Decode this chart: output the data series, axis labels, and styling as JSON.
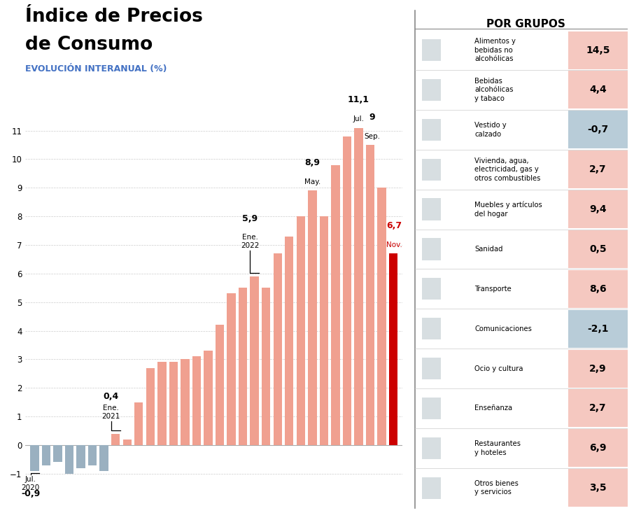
{
  "title_line1": "Índice de Precios",
  "title_line2": "de Consumo",
  "subtitle": "EVOLUCIÓN INTERANUAL (%)",
  "bar_values": [
    -0.9,
    -0.7,
    -0.6,
    -1.0,
    -0.8,
    -0.7,
    -0.9,
    0.4,
    0.2,
    1.5,
    2.7,
    2.9,
    2.9,
    3.0,
    3.1,
    3.3,
    4.2,
    5.3,
    5.5,
    5.9,
    5.5,
    6.7,
    7.3,
    8.0,
    8.9,
    8.0,
    9.8,
    10.8,
    11.1,
    10.5,
    9.0,
    6.7
  ],
  "bar_colors_normal": "#f0a090",
  "bar_colors_negative": "#9ab0c0",
  "bar_color_highlight": "#cc0000",
  "annotations": [
    {
      "label": "Jul.\n2020",
      "value": "-0,9",
      "bar_index": 0,
      "side": "below"
    },
    {
      "label": "Ene.\n2021",
      "value": "0,4",
      "bar_index": 7,
      "side": "above"
    },
    {
      "label": "Ene.\n2022",
      "value": "5,9",
      "bar_index": 19,
      "side": "above"
    },
    {
      "label": "May.",
      "value": "8,9",
      "bar_index": 24,
      "side": "above"
    },
    {
      "label": "Jul.",
      "value": "11,1",
      "bar_index": 28,
      "side": "above"
    },
    {
      "label": "Sep.",
      "value": "9",
      "bar_index": 29,
      "side": "above"
    },
    {
      "label": "Nov.",
      "value": "6,7",
      "bar_index": 31,
      "side": "above"
    }
  ],
  "ylim": [
    -1.3,
    11.8
  ],
  "yticks": [
    -1,
    0,
    1,
    2,
    3,
    4,
    5,
    6,
    7,
    8,
    9,
    10,
    11
  ],
  "right_panel_title": "POR GRUPOS",
  "right_panel_items": [
    {
      "label": "Alimentos y\nbebidas no\nalcohólicas",
      "value": "14,5",
      "num": 14.5,
      "bg": "#f5c8c0"
    },
    {
      "label": "Bebidas\nalcohólicas\ny tabaco",
      "value": "4,4",
      "num": 4.4,
      "bg": "#f5c8c0"
    },
    {
      "label": "Vestido y\ncalzado",
      "value": "-0,7",
      "num": -0.7,
      "bg": "#f5c8c0"
    },
    {
      "label": "Vivienda, agua,\nelectricidad, gas y\notros combustibles",
      "value": "2,7",
      "num": 2.7,
      "bg": "#f5c8c0"
    },
    {
      "label": "Muebles y artículos\ndel hogar",
      "value": "9,4",
      "num": 9.4,
      "bg": "#f5c8c0"
    },
    {
      "label": "Sanidad",
      "value": "0,5",
      "num": 0.5,
      "bg": "#f5c8c0"
    },
    {
      "label": "Transporte",
      "value": "8,6",
      "num": 8.6,
      "bg": "#f5c8c0"
    },
    {
      "label": "Comunicaciones",
      "value": "-2,1",
      "num": -2.1,
      "bg": "#b8ccd8"
    },
    {
      "label": "Ocio y cultura",
      "value": "2,9",
      "num": 2.9,
      "bg": "#f5c8c0"
    },
    {
      "label": "Enseñanza",
      "value": "2,7",
      "num": 2.7,
      "bg": "#f5c8c0"
    },
    {
      "label": "Restaurantes\ny hoteles",
      "value": "6,9",
      "num": 6.9,
      "bg": "#f5c8c0"
    },
    {
      "label": "Otros bienes\ny servicios",
      "value": "3,5",
      "num": 3.5,
      "bg": "#f5c8c0"
    }
  ]
}
